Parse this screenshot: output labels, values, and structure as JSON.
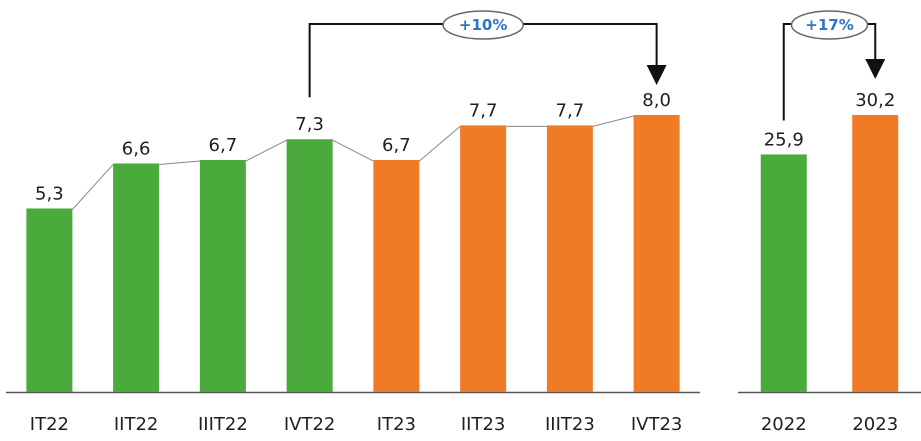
{
  "chart_data": [
    {
      "type": "bar",
      "categories": [
        "IT22",
        "IIT22",
        "IIIT22",
        "IVT22",
        "IT23",
        "IIT23",
        "IIIT23",
        "IVT23"
      ],
      "values": [
        5.3,
        6.6,
        6.7,
        7.3,
        6.7,
        7.7,
        7.7,
        8.0
      ],
      "data_labels": [
        "5,3",
        "6,6",
        "6,7",
        "7,3",
        "6,7",
        "7,7",
        "7,7",
        "8,0"
      ],
      "bar_colors": [
        "#4aaa3c",
        "#4aaa3c",
        "#4aaa3c",
        "#4aaa3c",
        "#f07a26",
        "#f07a26",
        "#f07a26",
        "#f07a26"
      ],
      "ylim": [
        0,
        9
      ],
      "connector_line": true,
      "annotation": {
        "text": "+10%",
        "from": "IVT22",
        "to": "IVT23"
      },
      "grid": false,
      "title": "",
      "xlabel": "",
      "ylabel": ""
    },
    {
      "type": "bar",
      "categories": [
        "2022",
        "2023"
      ],
      "values": [
        25.9,
        30.2
      ],
      "data_labels": [
        "25,9",
        "30,2"
      ],
      "bar_colors": [
        "#4aaa3c",
        "#f07a26"
      ],
      "ylim": [
        0,
        36
      ],
      "annotation": {
        "text": "+17%",
        "from": "2022",
        "to": "2023"
      },
      "grid": false,
      "title": "",
      "xlabel": "",
      "ylabel": ""
    }
  ],
  "colors": {
    "green": "#4aaa3c",
    "orange": "#f07a26",
    "annotation_text": "#2e74c9",
    "axis": "#555555"
  }
}
